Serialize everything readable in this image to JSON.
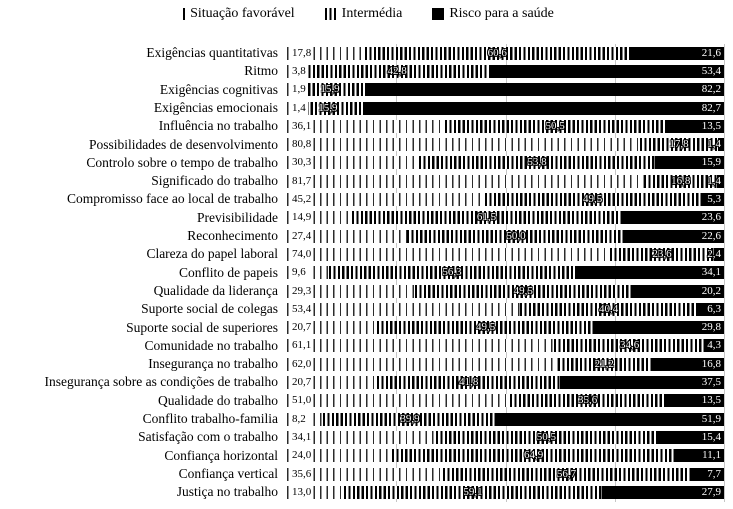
{
  "legend": {
    "items": [
      {
        "label": "Situação favorável",
        "swatch": "sparse-vertical-line"
      },
      {
        "label": "Intermédia",
        "swatch": "dense-vertical-lines"
      },
      {
        "label": "Risco para a saúde",
        "swatch": "solid-black-square"
      }
    ]
  },
  "chart_data": {
    "type": "bar",
    "subtype": "horizontal-100pct-stacked",
    "unit": "%",
    "xlim": [
      0,
      100
    ],
    "grid": true,
    "gridlines_pct": [
      25,
      50,
      75,
      100
    ],
    "legend_position": "top",
    "value_label_decimal_separator": ",",
    "categories": [
      "Exigências quantitativas",
      "Ritmo",
      "Exigências cognitivas",
      "Exigências emocionais",
      "Influência no trabalho",
      "Possibilidades de desenvolvimento",
      "Controlo sobre o tempo de trabalho",
      "Significado do trabalho",
      "Compromisso face ao local de trabalho",
      "Previsibilidade",
      "Reconhecimento",
      "Clareza do papel laboral",
      "Conflito de papeis",
      "Qualidade da liderança",
      "Suporte social de colegas",
      "Suporte social de superiores",
      "Comunidade no trabalho",
      "Insegurança no trabalho",
      "Insegurança sobre as condições de trabalho",
      "Qualidade do trabalho",
      "Conflito trabalho-familia",
      "Satisfação com o trabalho",
      "Confiança horizontal",
      "Confiança vertical",
      "Justiça no trabalho"
    ],
    "series": [
      {
        "name": "Situação favorável",
        "pattern": "sparse-vertical-lines",
        "values": [
          17.8,
          3.8,
          1.9,
          1.4,
          36.1,
          80.8,
          30.3,
          81.7,
          45.2,
          14.9,
          27.4,
          74.0,
          9.6,
          29.3,
          53.4,
          20.7,
          61.1,
          62.0,
          20.7,
          51.0,
          8.2,
          34.1,
          24.0,
          35.6,
          13.0
        ]
      },
      {
        "name": "Intermédia",
        "pattern": "dense-vertical-lines",
        "values": [
          60.6,
          42.8,
          15.9,
          15.9,
          50.5,
          17.8,
          53.8,
          16.8,
          49.5,
          61.5,
          50.0,
          23.6,
          56.3,
          49.5,
          40.4,
          49.5,
          34.6,
          21.2,
          41.8,
          35.6,
          39.9,
          50.5,
          64.9,
          56.7,
          59.1
        ]
      },
      {
        "name": "Risco para a saúde",
        "pattern": "solid-black",
        "values": [
          21.6,
          53.4,
          82.2,
          82.7,
          13.5,
          1.4,
          15.9,
          1.4,
          5.3,
          23.6,
          22.6,
          2.4,
          34.1,
          20.2,
          6.3,
          29.8,
          4.3,
          16.8,
          37.5,
          13.5,
          51.9,
          15.4,
          11.1,
          7.7,
          27.9
        ]
      }
    ]
  },
  "colors": {
    "foreground": "#000000",
    "background": "#ffffff",
    "gridline": "#c6c6c6"
  }
}
